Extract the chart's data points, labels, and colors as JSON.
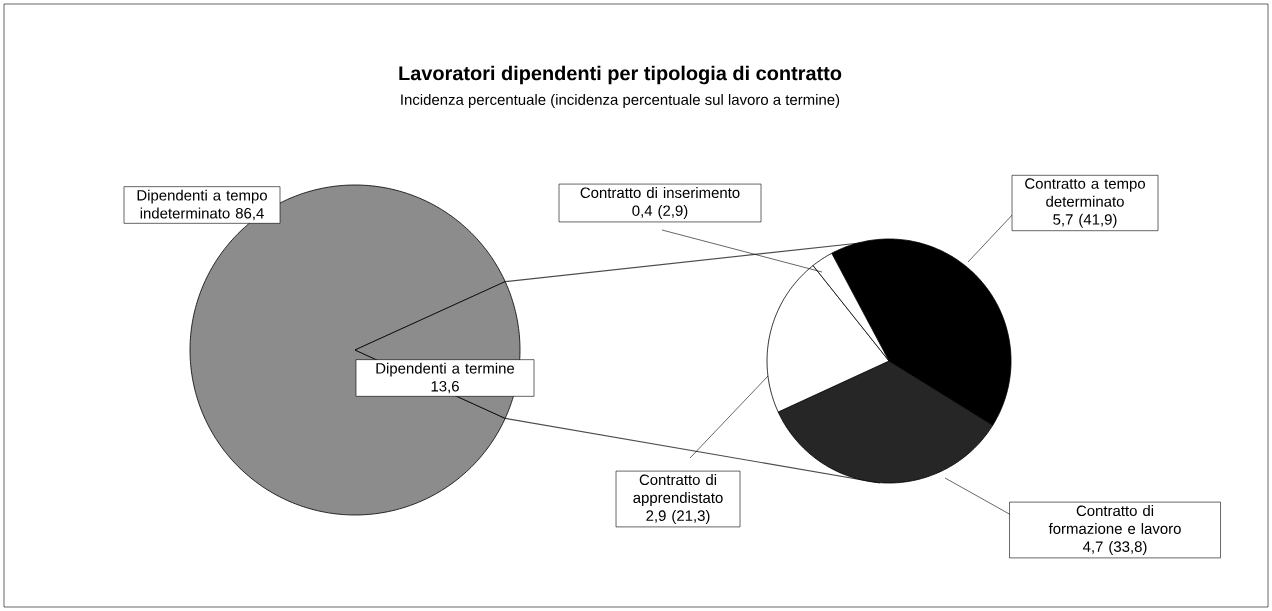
{
  "chart_data": [
    {
      "type": "pie",
      "title": "Lavoratori dipendenti per tipologia di contratto",
      "subtitle": "Incidenza percentuale (incidenza percentuale sul lavoro a termine)",
      "categories": [
        "Dipendenti a tempo indeterminato",
        "Dipendenti a termine"
      ],
      "values": [
        86.4,
        13.6
      ],
      "value_labels": [
        "86,4",
        "13,6"
      ],
      "colors": [
        "#8c8c8c",
        "#8c8c8c"
      ]
    },
    {
      "type": "pie",
      "categories": [
        "Contratto a tempo determinato",
        "Contratto di formazione e lavoro",
        "Contratto di apprendistato",
        "Contratto di inserimento"
      ],
      "values": [
        5.7,
        4.7,
        2.9,
        0.4
      ],
      "value_labels": [
        "5,7 (41,9)",
        "4,7 (33,8)",
        "2,9 (21,3)",
        "0,4 (2,9)"
      ],
      "colors": [
        "#000000",
        "#262626",
        "#ffffff",
        "#ffffff"
      ]
    }
  ]
}
